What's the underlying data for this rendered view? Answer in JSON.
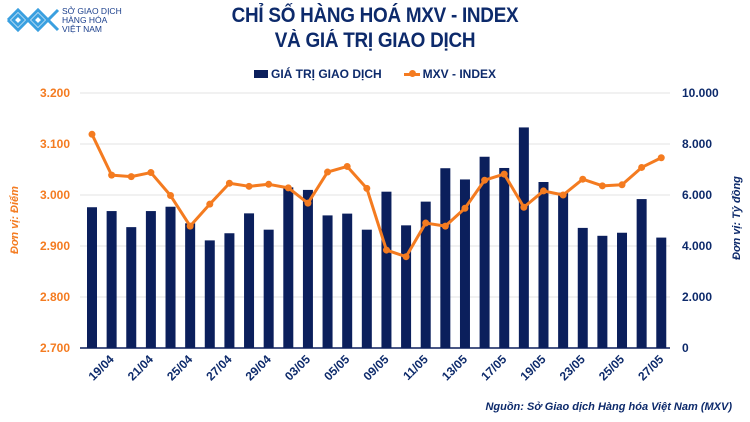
{
  "logo": {
    "lines": [
      "SỞ GIAO DỊCH",
      "HÀNG HÓA",
      "VIỆT NAM"
    ]
  },
  "title": {
    "line1": "CHỈ SỐ HÀNG HOÁ MXV - INDEX",
    "line2": "VÀ GIÁ TRỊ GIAO DỊCH"
  },
  "source": "Nguồn: Sở Giao dịch Hàng hóa Việt Nam (MXV)",
  "colors": {
    "bar": "#0b1f5c",
    "line": "#f47b20",
    "title": "#0d2a6b",
    "grid": "#e3e3e3"
  },
  "chart_data": {
    "type": "bar+line",
    "title": "CHỈ SỐ HÀNG HOÁ MXV - INDEX VÀ GIÁ TRỊ GIAO DỊCH",
    "categories": [
      "",
      "19/04",
      "",
      "21/04",
      "",
      "25/04",
      "",
      "27/04",
      "",
      "29/04",
      "",
      "03/05",
      "",
      "05/05",
      "",
      "09/05",
      "",
      "11/05",
      "",
      "13/05",
      "",
      "17/05",
      "",
      "19/05",
      "",
      "23/05",
      "",
      "25/05",
      "",
      "27/05"
    ],
    "legend_position": "top",
    "grid": true,
    "series": [
      {
        "name": "GIÁ TRỊ GIAO DỊCH",
        "type": "bar",
        "axis": "right",
        "values": [
          5520,
          5370,
          4740,
          5370,
          5540,
          4890,
          4220,
          4500,
          5280,
          4640,
          6300,
          6200,
          5200,
          5270,
          4640,
          6130,
          4810,
          5740,
          7050,
          6610,
          7500,
          7060,
          8650,
          6510,
          6090,
          4710,
          4400,
          4520,
          5840,
          4330
        ]
      },
      {
        "name": "MXV - INDEX",
        "type": "line",
        "axis": "left",
        "values": [
          3119,
          3039,
          3036,
          3044,
          2999,
          2939,
          2982,
          3023,
          3017,
          3021,
          3014,
          2984,
          3045,
          3056,
          3013,
          2892,
          2879,
          2945,
          2939,
          2974,
          3029,
          3041,
          2976,
          3008,
          3000,
          3031,
          3018,
          3020,
          3054,
          3073
        ]
      }
    ],
    "y_left": {
      "label": "Đơn vị: Điểm",
      "range": [
        2700,
        3200
      ],
      "ticks": [
        "2.700",
        "2.800",
        "2.900",
        "3.000",
        "3.100",
        "3.200"
      ]
    },
    "y_right": {
      "label": "Đơn vị: Tỷ đồng",
      "range": [
        0,
        10000
      ],
      "ticks": [
        "0",
        "2.000",
        "4.000",
        "6.000",
        "8.000",
        "10.000"
      ]
    }
  }
}
